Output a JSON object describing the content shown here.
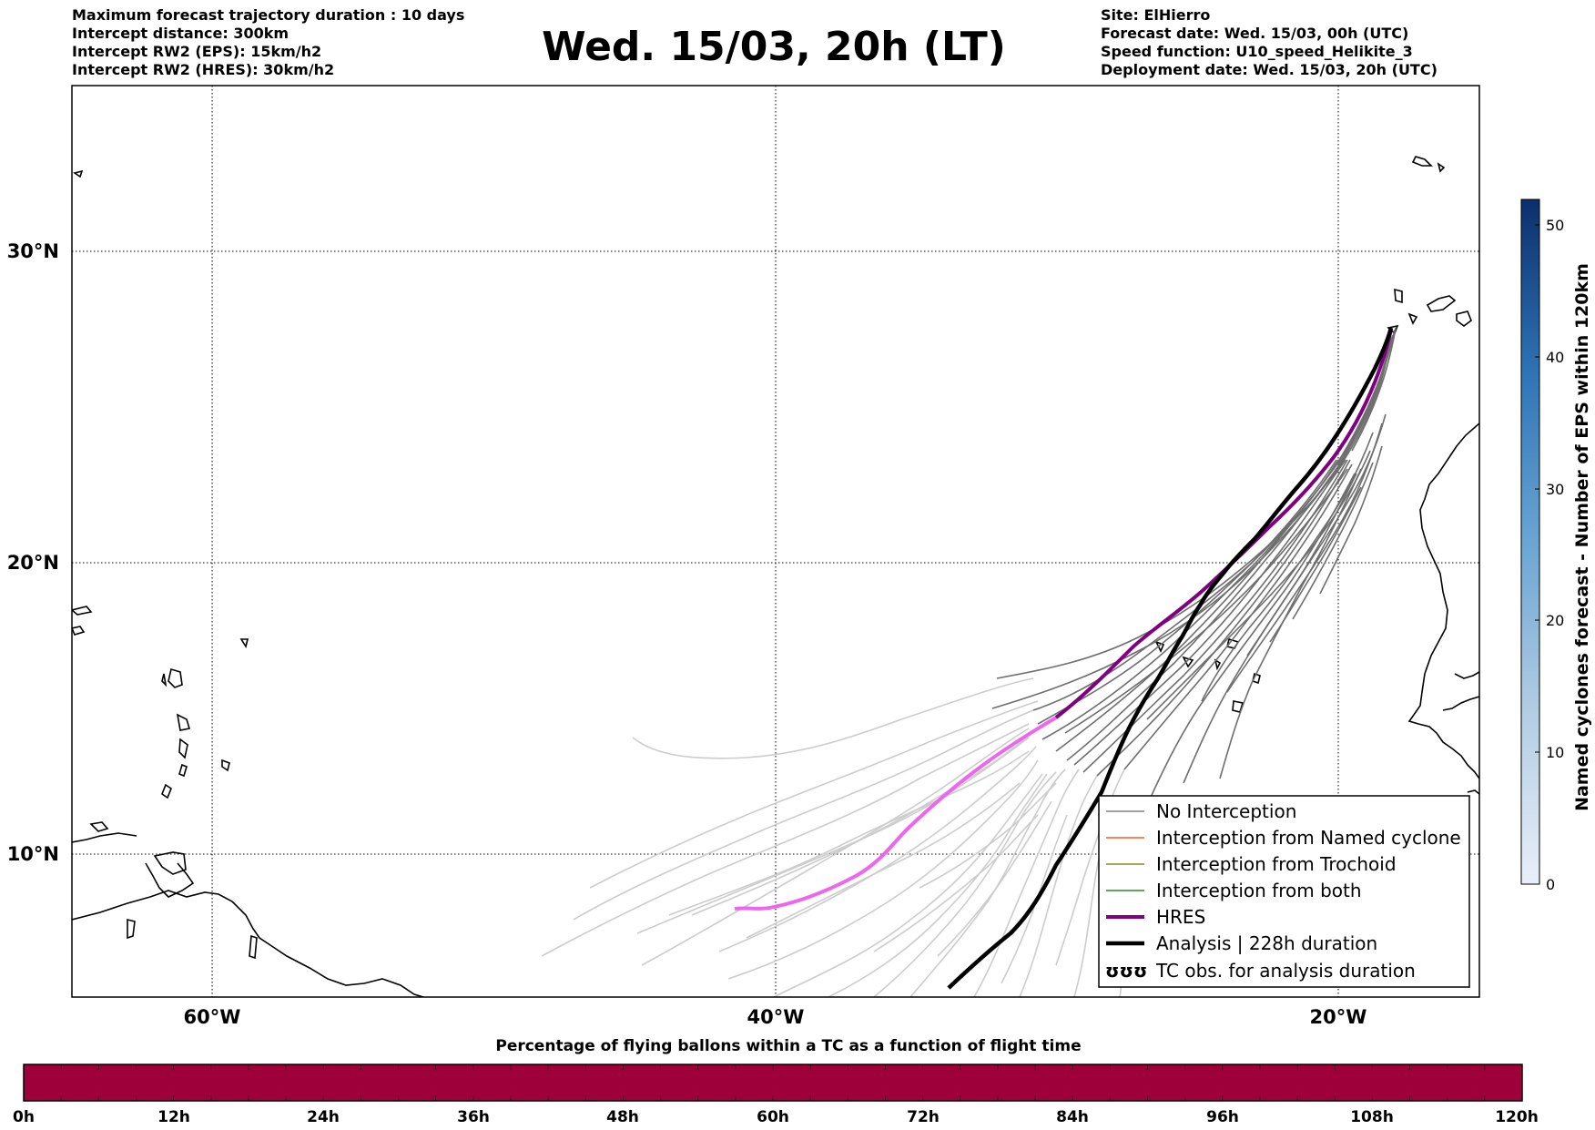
{
  "header": {
    "left_lines": [
      "Maximum forecast trajectory duration : 10 days",
      "Intercept distance: 300km",
      "Intercept RW2 (EPS):  15km/h2",
      "Intercept RW2 (HRES): 30km/h2"
    ],
    "title": "Wed. 15/03, 20h (LT)",
    "right_lines": [
      "Site: ElHierro",
      "Forecast date: Wed. 15/03, 00h (UTC)",
      "Speed function: U10_speed_Helikite_3",
      "Deployment date: Wed. 15/03, 20h (UTC)"
    ]
  },
  "map": {
    "lon_labels": [
      "60°W",
      "40°W",
      "20°W"
    ],
    "lat_labels": [
      "30°N",
      "20°N",
      "10°N"
    ],
    "gridline_style": "dotted",
    "colors": {
      "no_interception_near": "#6e6e6e",
      "no_interception_far": "#cccccc",
      "hres": "#800080",
      "hres_far": "#ee66ee",
      "analysis": "#000000",
      "coastline": "#000000"
    }
  },
  "legend": {
    "items": [
      {
        "label": "No Interception",
        "color": "#808080"
      },
      {
        "label": "Interception from Named cyclone",
        "color": "#ff5a1e"
      },
      {
        "label": "Interception from Trochoid",
        "color": "#8a8a20"
      },
      {
        "label": "Interception from both",
        "color": "#2a8a2a"
      },
      {
        "label": "HRES",
        "color": "#800080"
      },
      {
        "label": "Analysis | 228h duration",
        "color": "#000000"
      },
      {
        "label": "TC obs. for analysis duration",
        "color": "#000000"
      }
    ],
    "tc_symbol": "ʊʊʊ",
    "placement": "bottom-right"
  },
  "colorbar": {
    "title": "Named cyclones forecast - Number of EPS within 120km",
    "ticks": [
      "0",
      "10",
      "20",
      "30",
      "40",
      "50"
    ],
    "min": 0,
    "max": 52,
    "color_low": "#e6eef8",
    "color_high": "#0a2f6b"
  },
  "timeline": {
    "title": "Percentage of flying ballons within a TC as a function of flight time",
    "ticks": [
      "0h",
      "12h",
      "24h",
      "36h",
      "48h",
      "60h",
      "72h",
      "84h",
      "96h",
      "108h",
      "120h"
    ],
    "fill_color": "#9e003a"
  }
}
